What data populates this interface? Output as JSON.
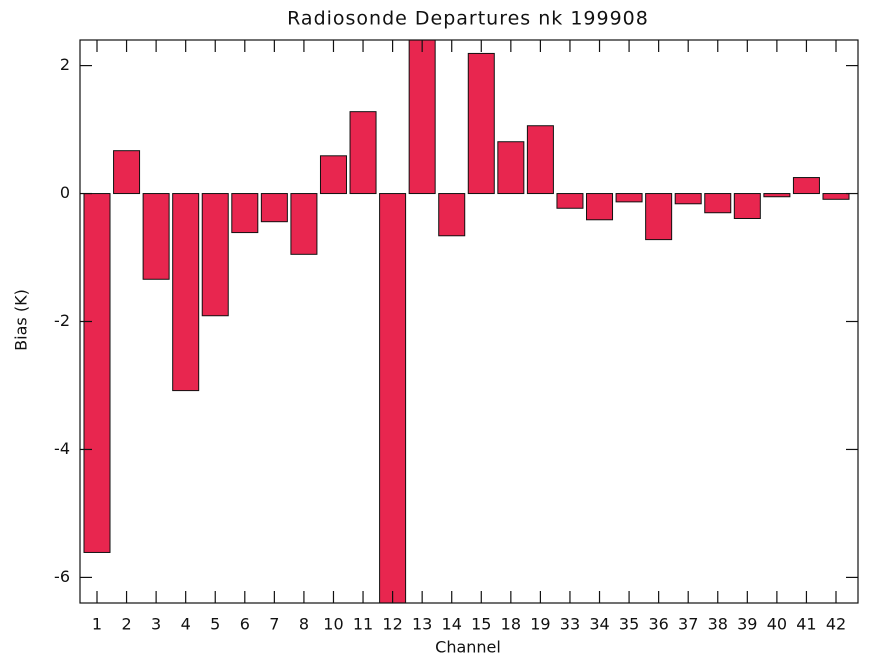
{
  "chart_data": {
    "type": "bar",
    "title": "Radiosonde Departures nk 199908",
    "x_label": "Channel",
    "y_label": "Bias (K)",
    "categories": [
      "1",
      "2",
      "3",
      "4",
      "5",
      "6",
      "7",
      "8",
      "10",
      "11",
      "12",
      "13",
      "14",
      "15",
      "18",
      "19",
      "33",
      "34",
      "35",
      "36",
      "37",
      "38",
      "39",
      "40",
      "41",
      "42"
    ],
    "values": [
      -5.61,
      0.67,
      -1.34,
      -3.08,
      -1.91,
      -0.61,
      -0.44,
      -0.95,
      0.59,
      1.28,
      -6.5,
      2.45,
      -0.66,
      2.19,
      0.81,
      1.06,
      -0.23,
      -0.41,
      -0.13,
      -0.72,
      -0.16,
      -0.3,
      -0.39,
      -0.05,
      0.25,
      -0.09
    ],
    "color": "#e8264f",
    "ylim": [
      -6.4,
      2.4
    ],
    "yticks": [
      -6,
      -4,
      -2,
      0,
      2
    ]
  }
}
